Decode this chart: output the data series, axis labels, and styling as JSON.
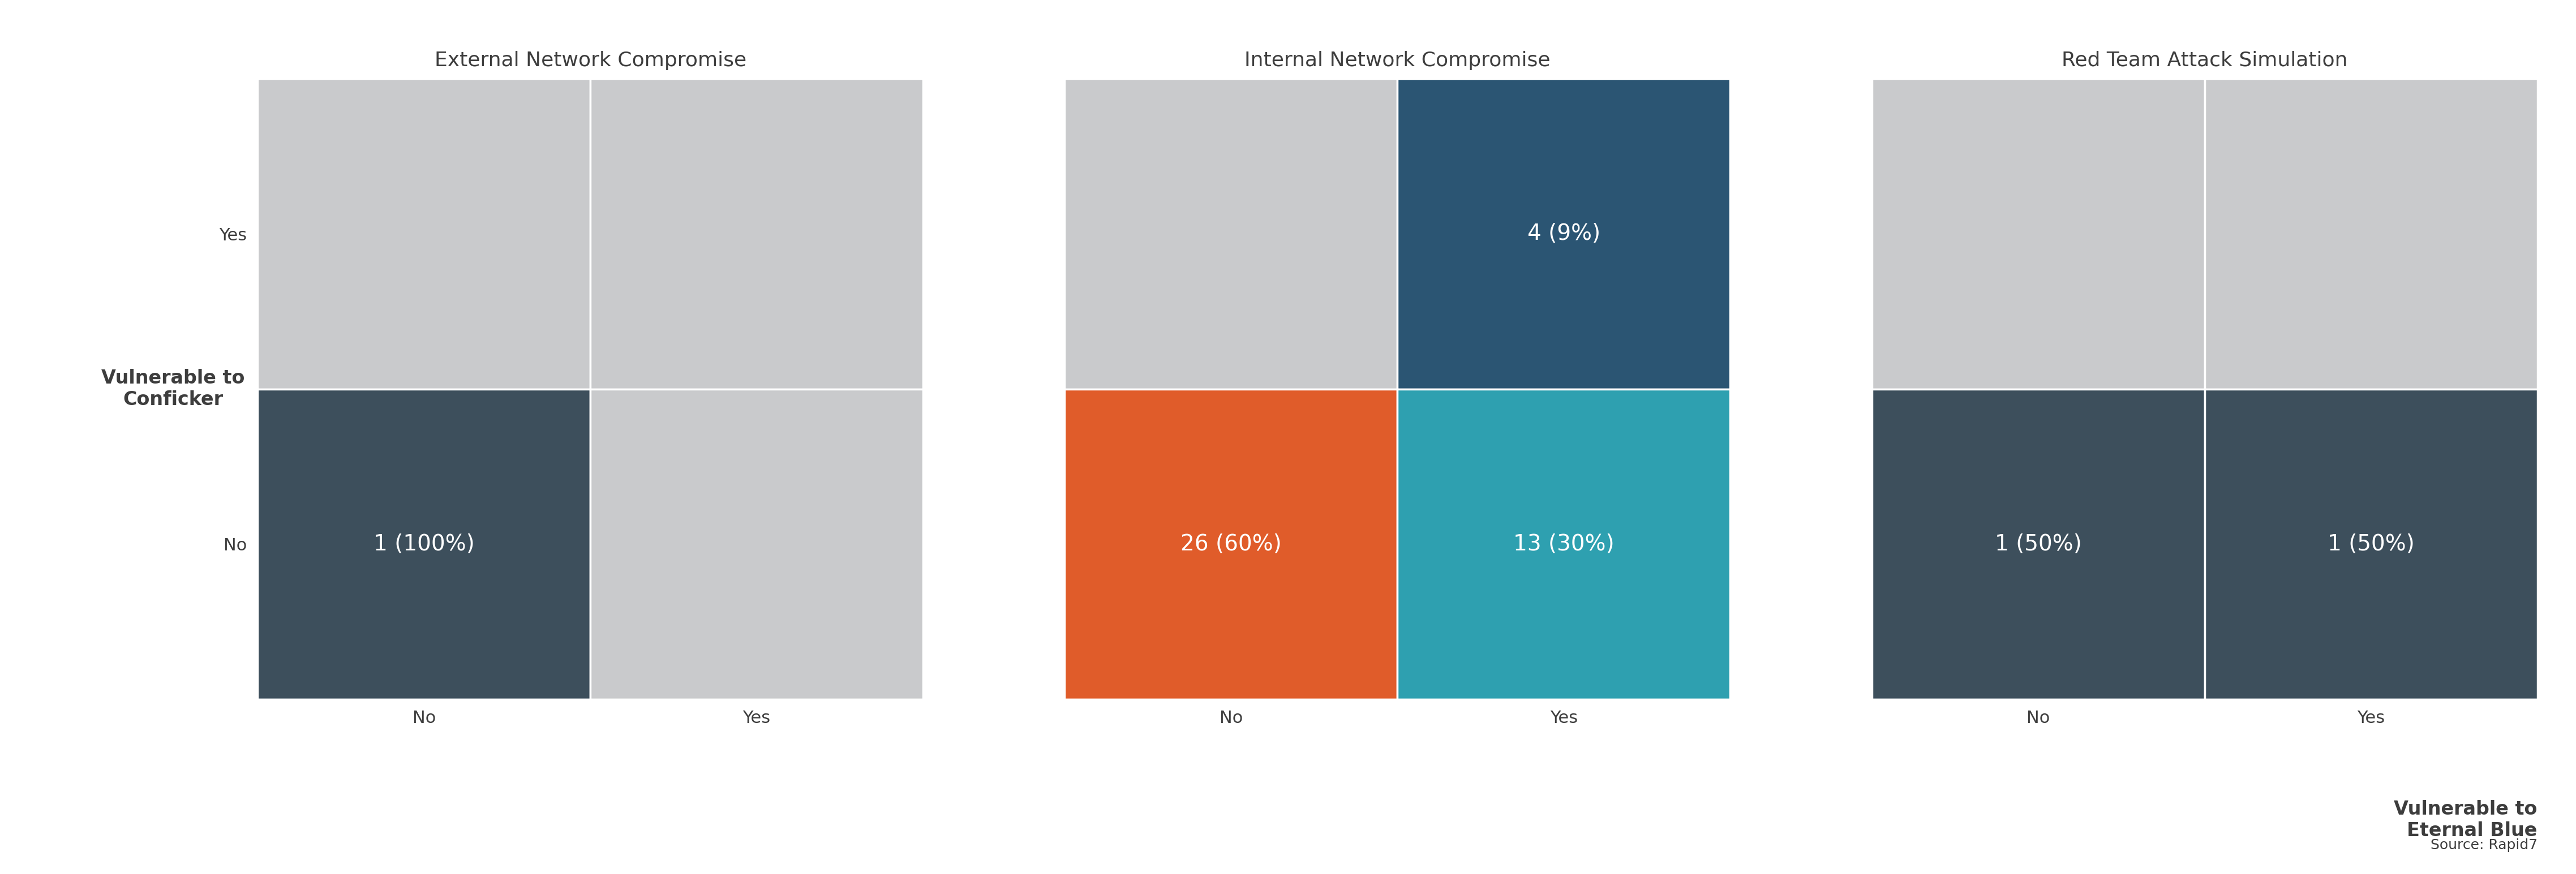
{
  "panels": [
    {
      "title": "External Network Compromise",
      "cells": [
        {
          "row": "Yes",
          "col": "No",
          "color": "#c9cacc",
          "label": ""
        },
        {
          "row": "Yes",
          "col": "Yes",
          "color": "#c9cacc",
          "label": ""
        },
        {
          "row": "No",
          "col": "No",
          "color": "#3d4f5c",
          "label": "1 (100%)"
        },
        {
          "row": "No",
          "col": "Yes",
          "color": "#c9cacc",
          "label": ""
        }
      ]
    },
    {
      "title": "Internal Network Compromise",
      "cells": [
        {
          "row": "Yes",
          "col": "No",
          "color": "#c9cacc",
          "label": ""
        },
        {
          "row": "Yes",
          "col": "Yes",
          "color": "#2b5573",
          "label": "4 (9%)"
        },
        {
          "row": "No",
          "col": "No",
          "color": "#e05c2a",
          "label": "26 (60%)"
        },
        {
          "row": "No",
          "col": "Yes",
          "color": "#2ea0b0",
          "label": "13 (30%)"
        }
      ]
    },
    {
      "title": "Red Team Attack Simulation",
      "cells": [
        {
          "row": "Yes",
          "col": "No",
          "color": "#c9cacc",
          "label": ""
        },
        {
          "row": "Yes",
          "col": "Yes",
          "color": "#c9cacc",
          "label": ""
        },
        {
          "row": "No",
          "col": "No",
          "color": "#3d4f5c",
          "label": "1 (50%)"
        },
        {
          "row": "No",
          "col": "Yes",
          "color": "#3d4f5c",
          "label": "1 (50%)"
        }
      ]
    }
  ],
  "x_label": "Vulnerable to\nEternal Blue",
  "y_label": "Vulnerable to\nConficker",
  "source": "Source: Rapid7",
  "bg_color": "#ffffff",
  "label_color": "#3d3d3d",
  "cell_text_color": "#ffffff",
  "title_fontsize": 26,
  "tick_fontsize": 22,
  "ylabel_fontsize": 24,
  "xlabel_fontsize": 24,
  "cell_text_fontsize": 28,
  "source_fontsize": 18,
  "col_labels": [
    "No",
    "Yes"
  ],
  "row_labels_bottom_to_top": [
    "No",
    "Yes"
  ]
}
